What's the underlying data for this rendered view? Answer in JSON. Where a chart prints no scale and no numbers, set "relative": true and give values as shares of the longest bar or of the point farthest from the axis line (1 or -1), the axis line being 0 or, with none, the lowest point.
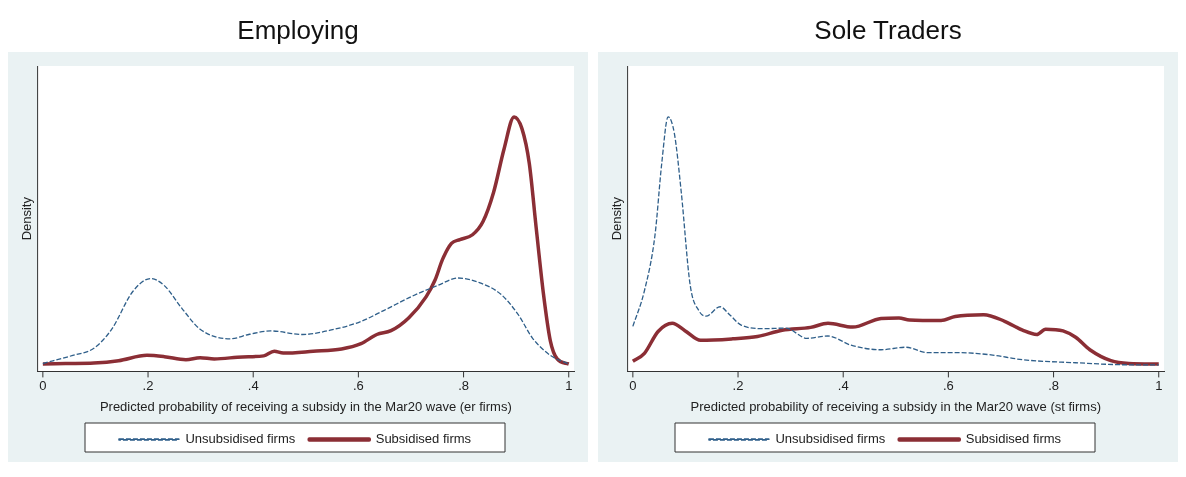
{
  "chart_data": [
    {
      "type": "line",
      "title": "Employing",
      "xlabel": "Predicted probability of receiving a subsidy in the Mar20 wave (er firms)",
      "ylabel": "Density",
      "relative": true,
      "xlim": [
        -0.01,
        1.01
      ],
      "xticks": [
        {
          "value": 0,
          "label": "0"
        },
        {
          "value": 0.2,
          "label": ".2"
        },
        {
          "value": 0.4,
          "label": ".4"
        },
        {
          "value": 0.6,
          "label": ".6"
        },
        {
          "value": 0.8,
          "label": ".8"
        },
        {
          "value": 1,
          "label": "1"
        }
      ],
      "grid": false,
      "legend": "bottom",
      "marker": "none",
      "series": [
        {
          "name": "Unsubsidised firms",
          "color": "#2f5f8a",
          "line_style": "dashed",
          "x": [
            0,
            0.057,
            0.097,
            0.131,
            0.171,
            0.205,
            0.231,
            0.265,
            0.299,
            0.356,
            0.393,
            0.433,
            0.494,
            0.555,
            0.602,
            0.649,
            0.703,
            0.75,
            0.79,
            0.83,
            0.871,
            0.904,
            0.931,
            0.965,
            1
          ],
          "values": [
            0.031,
            0.063,
            0.091,
            0.166,
            0.314,
            0.365,
            0.337,
            0.246,
            0.166,
            0.128,
            0.146,
            0.159,
            0.145,
            0.166,
            0.194,
            0.24,
            0.296,
            0.337,
            0.367,
            0.349,
            0.303,
            0.223,
            0.131,
            0.063,
            0.029
          ]
        },
        {
          "name": "Subsidised firms",
          "color": "#8b2e35",
          "line_style": "solid",
          "x": [
            0,
            0.043,
            0.097,
            0.144,
            0.198,
            0.231,
            0.272,
            0.299,
            0.326,
            0.38,
            0.42,
            0.44,
            0.457,
            0.514,
            0.568,
            0.605,
            0.635,
            0.662,
            0.696,
            0.729,
            0.746,
            0.76,
            0.777,
            0.793,
            0.817,
            0.837,
            0.857,
            0.877,
            0.896,
            0.911,
            0.925,
            0.938,
            0.952,
            0.965,
            0.978,
            1
          ],
          "values": [
            0.029,
            0.031,
            0.033,
            0.042,
            0.063,
            0.058,
            0.046,
            0.054,
            0.049,
            0.057,
            0.061,
            0.079,
            0.072,
            0.079,
            0.088,
            0.109,
            0.145,
            0.16,
            0.211,
            0.294,
            0.36,
            0.44,
            0.503,
            0.518,
            0.537,
            0.589,
            0.703,
            0.874,
            1,
            0.954,
            0.817,
            0.566,
            0.303,
            0.12,
            0.049,
            0.029
          ]
        }
      ]
    },
    {
      "type": "line",
      "title": "Sole Traders",
      "xlabel": "Predicted probability of receiving a subsidy in the Mar20 wave (st firms)",
      "ylabel": "Density",
      "relative": true,
      "xlim": [
        -0.01,
        1.01
      ],
      "xticks": [
        {
          "value": 0,
          "label": "0"
        },
        {
          "value": 0.2,
          "label": ".2"
        },
        {
          "value": 0.4,
          "label": ".4"
        },
        {
          "value": 0.6,
          "label": ".6"
        },
        {
          "value": 0.8,
          "label": ".8"
        },
        {
          "value": 1,
          "label": "1"
        }
      ],
      "grid": false,
      "legend": "bottom",
      "marker": "none",
      "series": [
        {
          "name": "Unsubsidised firms",
          "color": "#2f5f8a",
          "line_style": "dashed",
          "x": [
            0,
            0.022,
            0.042,
            0.055,
            0.067,
            0.079,
            0.092,
            0.109,
            0.126,
            0.139,
            0.166,
            0.183,
            0.206,
            0.25,
            0.291,
            0.331,
            0.371,
            0.415,
            0.472,
            0.519,
            0.56,
            0.613,
            0.681,
            0.741,
            0.842,
            0.943,
            1
          ],
          "values": [
            0.177,
            0.317,
            0.534,
            0.819,
            1,
            0.934,
            0.705,
            0.339,
            0.237,
            0.217,
            0.254,
            0.225,
            0.182,
            0.168,
            0.17,
            0.13,
            0.139,
            0.103,
            0.085,
            0.095,
            0.074,
            0.074,
            0.065,
            0.046,
            0.034,
            0.026,
            0.026
          ]
        },
        {
          "name": "Subsidised firms",
          "color": "#8b2e35",
          "line_style": "solid",
          "x": [
            0,
            0.022,
            0.048,
            0.075,
            0.099,
            0.129,
            0.19,
            0.237,
            0.284,
            0.338,
            0.371,
            0.418,
            0.472,
            0.506,
            0.526,
            0.586,
            0.613,
            0.667,
            0.707,
            0.741,
            0.768,
            0.785,
            0.818,
            0.842,
            0.869,
            0.909,
            0.943,
            1
          ],
          "values": [
            0.04,
            0.071,
            0.157,
            0.189,
            0.16,
            0.122,
            0.128,
            0.137,
            0.162,
            0.173,
            0.189,
            0.174,
            0.208,
            0.21,
            0.202,
            0.2,
            0.216,
            0.223,
            0.197,
            0.162,
            0.145,
            0.166,
            0.159,
            0.134,
            0.085,
            0.042,
            0.031,
            0.029
          ]
        }
      ]
    }
  ]
}
